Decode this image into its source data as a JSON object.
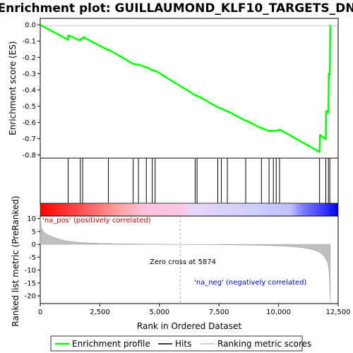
{
  "chart_data": {
    "type": "line",
    "title": "Enrichment plot: GUILLAUMOND_KLF10_TARGETS_DN",
    "xlabel": "Rank in Ordered Dataset",
    "ylabel_top": "Enrichment score (ES)",
    "ylabel_bottom": "Ranked list metric (PreRanked)",
    "xlim": [
      0,
      12500
    ],
    "x_ticks": [
      0,
      2500,
      5000,
      7500,
      10000,
      12500
    ],
    "x_tick_labels": [
      "0",
      "2,500",
      "5,000",
      "7,500",
      "10,000",
      "12,500"
    ],
    "es_ylim": [
      -0.82,
      0.04
    ],
    "es_y_ticks": [
      0.0,
      -0.1,
      -0.2,
      -0.3,
      -0.4,
      -0.5,
      -0.6,
      -0.7,
      -0.8
    ],
    "es_y_tick_labels": [
      "0.0",
      "-0.1",
      "-0.2",
      "-0.3",
      "-0.4",
      "-0.5",
      "-0.6",
      "-0.7",
      "-0.8"
    ],
    "metric_ylim": [
      -23,
      11
    ],
    "metric_y_ticks": [
      10,
      5,
      0,
      -5,
      -10,
      -15,
      -20
    ],
    "metric_y_tick_labels": [
      "10",
      "5",
      "0",
      "-5",
      "-10",
      "-15",
      "-20"
    ],
    "enrichment_profile": {
      "name": "Enrichment profile",
      "color": "#00ff00",
      "x": [
        0,
        1170,
        1180,
        1680,
        1700,
        1780,
        1800,
        2860,
        2880,
        3900,
        3920,
        4120,
        4140,
        4450,
        4470,
        4700,
        4720,
        4820,
        4840,
        6500,
        6520,
        6580,
        6600,
        7450,
        7470,
        7600,
        7620,
        7850,
        7870,
        8620,
        8640,
        9280,
        9300,
        9600,
        9620,
        9780,
        9800,
        9900,
        9920,
        10040,
        10060,
        11720,
        11740,
        11980,
        12000,
        12090,
        12110,
        12150,
        12170
      ],
      "y": [
        0.0,
        -0.092,
        -0.064,
        -0.097,
        -0.088,
        -0.084,
        -0.075,
        -0.156,
        -0.153,
        -0.24,
        -0.24,
        -0.246,
        -0.244,
        -0.262,
        -0.26,
        -0.28,
        -0.278,
        -0.284,
        -0.283,
        -0.432,
        -0.433,
        -0.438,
        -0.437,
        -0.507,
        -0.507,
        -0.516,
        -0.515,
        -0.533,
        -0.532,
        -0.59,
        -0.589,
        -0.636,
        -0.635,
        -0.654,
        -0.653,
        -0.652,
        -0.651,
        -0.652,
        -0.651,
        -0.646,
        -0.645,
        -0.782,
        -0.678,
        -0.703,
        -0.53,
        -0.54,
        -0.3,
        -0.31,
        0.0
      ]
    },
    "hits": {
      "name": "Hits",
      "color": "#000000",
      "x": [
        1170,
        1680,
        1780,
        2860,
        3900,
        4120,
        4450,
        4700,
        4820,
        6500,
        6580,
        7450,
        7600,
        7850,
        8620,
        9280,
        9600,
        9780,
        9900,
        10040,
        11720,
        11980,
        12090,
        12150
      ]
    },
    "ranking_metric": {
      "name": "Ranking metric scores",
      "color": "#c0c0c0",
      "x": [
        0,
        50,
        150,
        300,
        500,
        800,
        1100,
        1500,
        2000,
        2500,
        3000,
        3500,
        4000,
        4500,
        5000,
        5500,
        5874,
        6500,
        7000,
        7500,
        8000,
        8500,
        9000,
        9500,
        10000,
        10500,
        11000,
        11300,
        11500,
        11700,
        11850,
        11950,
        12050,
        12100,
        12130,
        12150,
        12170
      ],
      "y": [
        10.5,
        6.5,
        4.8,
        3.8,
        3.0,
        2.0,
        1.3,
        0.9,
        0.6,
        0.4,
        0.3,
        0.2,
        0.15,
        0.1,
        0.06,
        0.03,
        0.0,
        -0.03,
        -0.07,
        -0.12,
        -0.18,
        -0.25,
        -0.33,
        -0.45,
        -0.6,
        -0.85,
        -1.3,
        -1.8,
        -2.3,
        -3.0,
        -4.0,
        -5.2,
        -7.0,
        -9.0,
        -12.0,
        -17.0,
        -22.5
      ]
    },
    "annotations": {
      "pos_label": "'na_pos' (positively correlated)",
      "neg_label": "'na_neg' (negatively correlated)",
      "zero_cross": "Zero cross at 5874",
      "zero_cross_x": 5874
    },
    "legend": [
      "Enrichment profile",
      "Hits",
      "Ranking metric scores"
    ],
    "legend_placement": "bottom",
    "grid": false
  }
}
